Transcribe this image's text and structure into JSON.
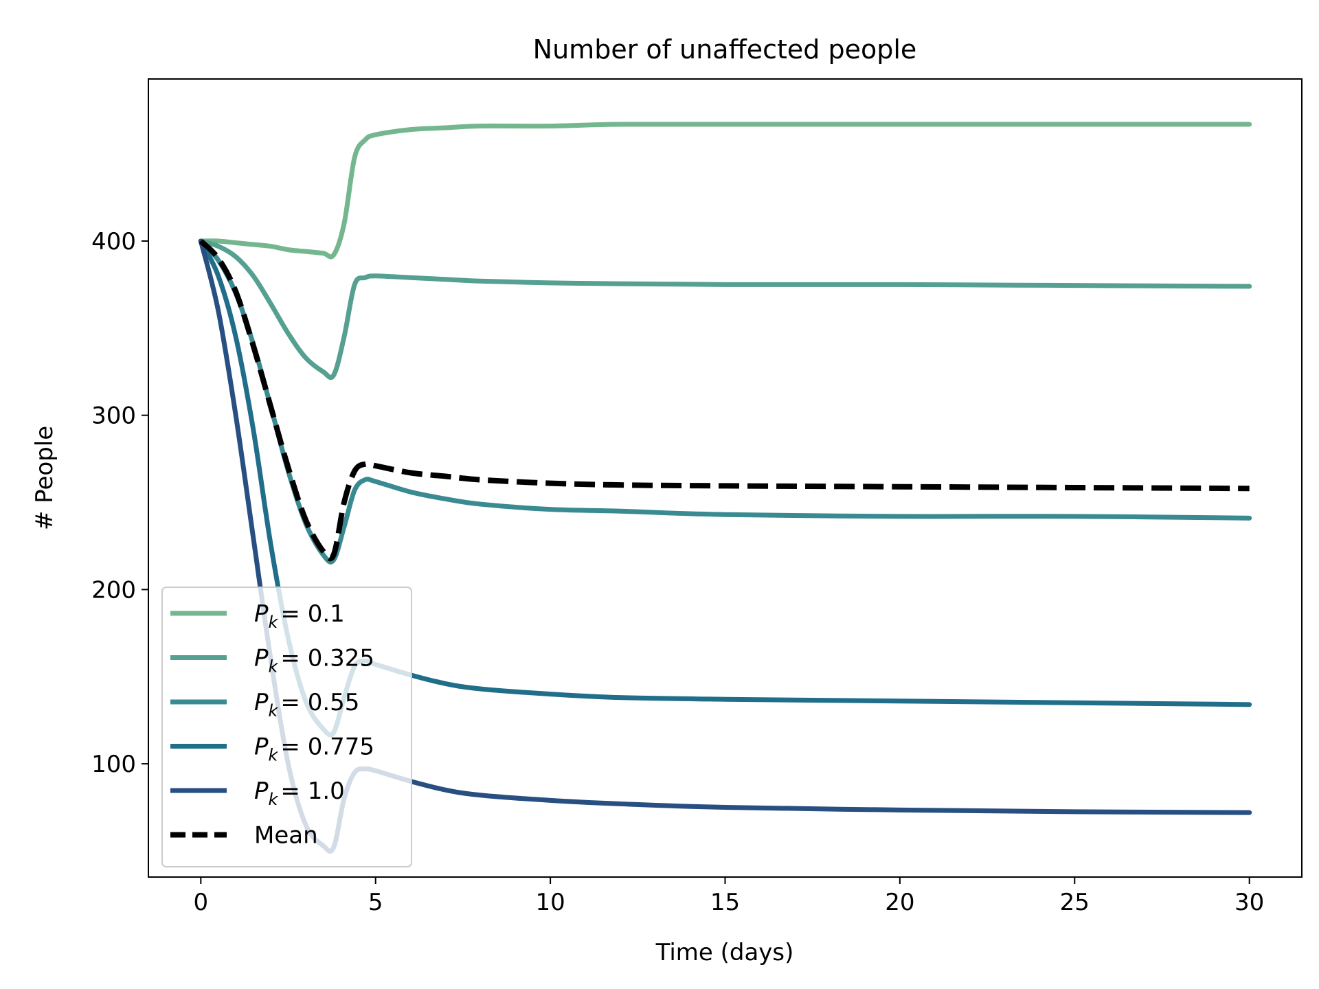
{
  "chart_data": {
    "type": "line",
    "title": "Number of unaffected people",
    "xlabel": "Time (days)",
    "ylabel": "# People",
    "xlim": [
      -1.5,
      31.5
    ],
    "ylim": [
      35,
      493
    ],
    "xticks": [
      0,
      5,
      10,
      15,
      20,
      25,
      30
    ],
    "yticks": [
      100,
      200,
      300,
      400
    ],
    "grid": false,
    "legend_position": "lower-left",
    "x": [
      0,
      0.5,
      1,
      1.5,
      2,
      2.5,
      3,
      3.5,
      3.8,
      4.1,
      4.4,
      4.7,
      5,
      6,
      7,
      8,
      10,
      12,
      15,
      20,
      25,
      30
    ],
    "series": [
      {
        "name": "P_k = 0.1",
        "label_symbol": "P",
        "label_subscript": "k",
        "label_value": "= 0.1",
        "color": "#74b68e",
        "style": "solid",
        "values": [
          400,
          400,
          399,
          398,
          397,
          395,
          394,
          393,
          392,
          410,
          448,
          458,
          461,
          464,
          465,
          466,
          466,
          467,
          467,
          467,
          467,
          467
        ]
      },
      {
        "name": "P_k = 0.325",
        "label_symbol": "P",
        "label_subscript": "k",
        "label_value": "= 0.325",
        "color": "#55a090",
        "style": "solid",
        "values": [
          400,
          397,
          391,
          380,
          364,
          347,
          333,
          325,
          323,
          345,
          375,
          379,
          380,
          379,
          378,
          377,
          376,
          375.5,
          375,
          375,
          374.5,
          374
        ]
      },
      {
        "name": "P_k = 0.55",
        "label_symbol": "P",
        "label_subscript": "k",
        "label_value": "= 0.55",
        "color": "#3a8a92",
        "style": "solid",
        "values": [
          400,
          389,
          370,
          341,
          305,
          268,
          238,
          220,
          217,
          236,
          257,
          263,
          262,
          256,
          252,
          249,
          246,
          245,
          243,
          242,
          242,
          241
        ]
      },
      {
        "name": "P_k = 0.775",
        "label_symbol": "P",
        "label_subscript": "k",
        "label_value": "= 0.775",
        "color": "#206e8a",
        "style": "solid",
        "values": [
          400,
          380,
          345,
          292,
          226,
          172,
          136,
          120,
          118,
          138,
          156,
          159,
          157,
          151,
          146,
          143,
          140,
          138,
          137,
          136,
          135,
          134
        ]
      },
      {
        "name": "P_k = 1.0",
        "label_symbol": "P",
        "label_subscript": "k",
        "label_value": "= 1.0",
        "color": "#274f81",
        "style": "solid",
        "values": [
          400,
          360,
          300,
          230,
          160,
          100,
          65,
          53,
          52,
          80,
          95,
          97,
          96,
          90,
          85,
          82,
          79,
          77,
          75,
          73.5,
          72.5,
          72
        ]
      },
      {
        "name": "Mean",
        "label_symbol": "",
        "label_subscript": "",
        "label_value": "Mean",
        "color": "#000000",
        "style": "dashed",
        "values": [
          400,
          390,
          371,
          340,
          305,
          270,
          240,
          222,
          220,
          250,
          268,
          272,
          271,
          267,
          265,
          263,
          261,
          260,
          259.5,
          259,
          258.5,
          258
        ]
      }
    ]
  },
  "colors": {
    "axes": "#000000",
    "background": "#ffffff",
    "legend_border": "#cccccc"
  }
}
